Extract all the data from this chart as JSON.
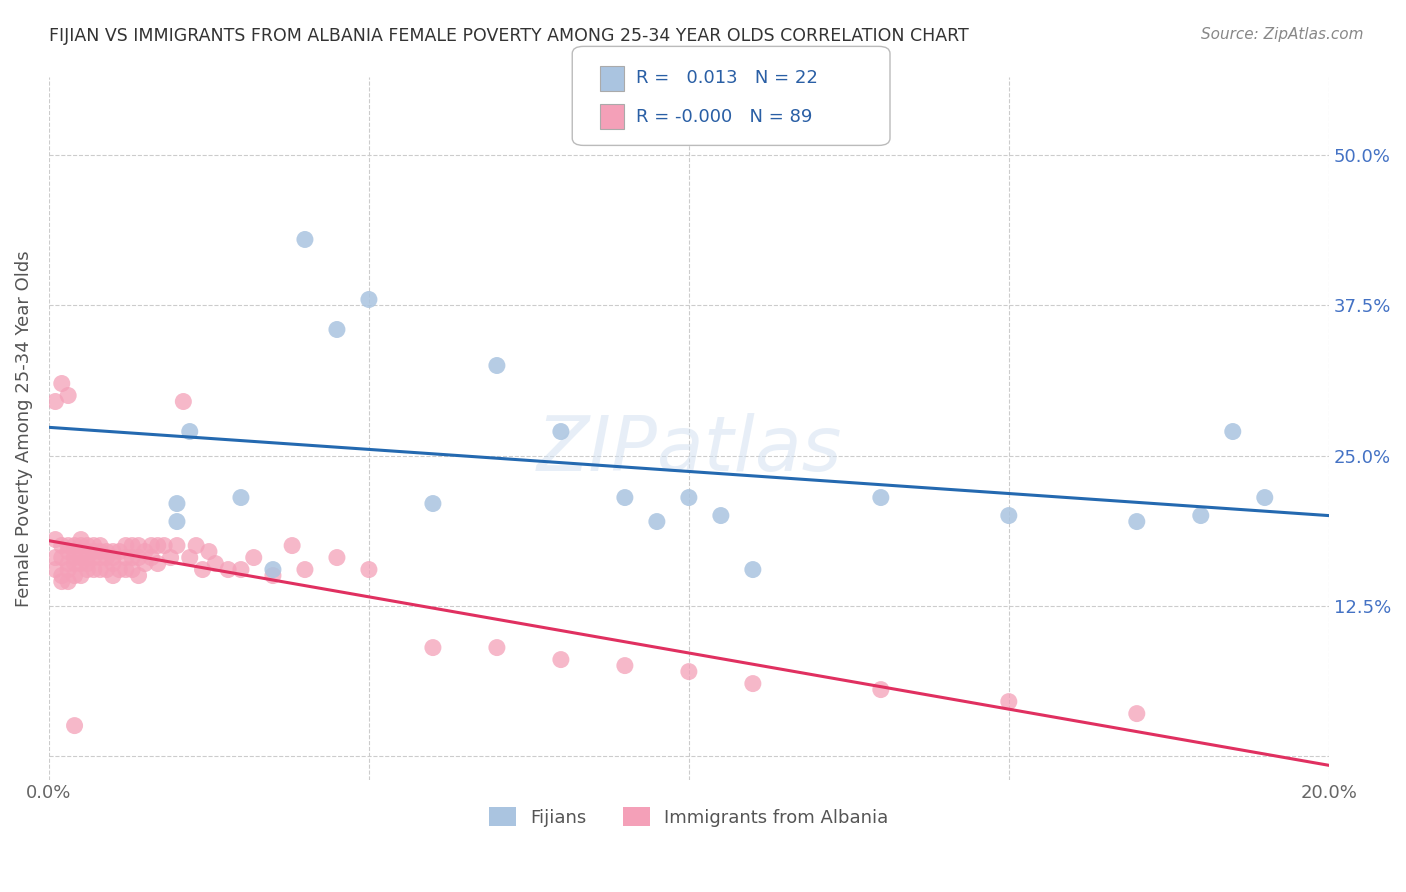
{
  "title": "FIJIAN VS IMMIGRANTS FROM ALBANIA FEMALE POVERTY AMONG 25-34 YEAR OLDS CORRELATION CHART",
  "source": "Source: ZipAtlas.com",
  "ylabel": "Female Poverty Among 25-34 Year Olds",
  "xlim": [
    0.0,
    0.2
  ],
  "ylim": [
    -0.02,
    0.565
  ],
  "xticks": [
    0.0,
    0.05,
    0.1,
    0.15,
    0.2
  ],
  "xticklabels": [
    "0.0%",
    "",
    "",
    "",
    "20.0%"
  ],
  "yticks": [
    0.0,
    0.125,
    0.25,
    0.375,
    0.5
  ],
  "yticklabels_right": [
    "",
    "12.5%",
    "25.0%",
    "37.5%",
    "50.0%"
  ],
  "fijian_R": 0.013,
  "fijian_N": 22,
  "albania_R": -0.0,
  "albania_N": 89,
  "fijian_color": "#aac4e0",
  "albania_color": "#f4a0b8",
  "fijian_line_color": "#2469b0",
  "albania_line_color": "#e03060",
  "background_color": "#ffffff",
  "grid_color": "#cccccc",
  "legend_text_color": "#2a5fa5",
  "fijian_x": [
    0.02,
    0.02,
    0.022,
    0.03,
    0.035,
    0.04,
    0.045,
    0.05,
    0.06,
    0.07,
    0.08,
    0.09,
    0.095,
    0.1,
    0.105,
    0.11,
    0.13,
    0.15,
    0.17,
    0.18,
    0.19,
    0.185
  ],
  "fijian_y": [
    0.21,
    0.195,
    0.27,
    0.215,
    0.155,
    0.43,
    0.355,
    0.38,
    0.21,
    0.325,
    0.27,
    0.215,
    0.195,
    0.215,
    0.2,
    0.155,
    0.215,
    0.2,
    0.195,
    0.2,
    0.215,
    0.27
  ],
  "albania_x": [
    0.001,
    0.001,
    0.001,
    0.002,
    0.002,
    0.002,
    0.002,
    0.003,
    0.003,
    0.003,
    0.003,
    0.003,
    0.004,
    0.004,
    0.004,
    0.004,
    0.004,
    0.005,
    0.005,
    0.005,
    0.005,
    0.005,
    0.006,
    0.006,
    0.006,
    0.006,
    0.006,
    0.007,
    0.007,
    0.007,
    0.007,
    0.008,
    0.008,
    0.008,
    0.008,
    0.009,
    0.009,
    0.009,
    0.01,
    0.01,
    0.01,
    0.01,
    0.011,
    0.011,
    0.012,
    0.012,
    0.012,
    0.013,
    0.013,
    0.013,
    0.014,
    0.014,
    0.014,
    0.015,
    0.015,
    0.016,
    0.016,
    0.017,
    0.017,
    0.018,
    0.019,
    0.02,
    0.021,
    0.022,
    0.023,
    0.024,
    0.025,
    0.026,
    0.028,
    0.03,
    0.032,
    0.035,
    0.038,
    0.04,
    0.045,
    0.05,
    0.06,
    0.07,
    0.08,
    0.09,
    0.1,
    0.11,
    0.13,
    0.15,
    0.17,
    0.001,
    0.002,
    0.003,
    0.004
  ],
  "albania_y": [
    0.18,
    0.165,
    0.155,
    0.175,
    0.165,
    0.15,
    0.145,
    0.175,
    0.17,
    0.16,
    0.155,
    0.145,
    0.175,
    0.17,
    0.165,
    0.16,
    0.15,
    0.18,
    0.175,
    0.165,
    0.16,
    0.15,
    0.175,
    0.17,
    0.165,
    0.16,
    0.155,
    0.175,
    0.17,
    0.165,
    0.155,
    0.175,
    0.17,
    0.165,
    0.155,
    0.17,
    0.165,
    0.155,
    0.17,
    0.165,
    0.16,
    0.15,
    0.17,
    0.155,
    0.175,
    0.165,
    0.155,
    0.175,
    0.165,
    0.155,
    0.175,
    0.165,
    0.15,
    0.17,
    0.16,
    0.175,
    0.165,
    0.175,
    0.16,
    0.175,
    0.165,
    0.175,
    0.295,
    0.165,
    0.175,
    0.155,
    0.17,
    0.16,
    0.155,
    0.155,
    0.165,
    0.15,
    0.175,
    0.155,
    0.165,
    0.155,
    0.09,
    0.09,
    0.08,
    0.075,
    0.07,
    0.06,
    0.055,
    0.045,
    0.035,
    0.295,
    0.31,
    0.3,
    0.025
  ],
  "watermark": "ZIPatlas"
}
